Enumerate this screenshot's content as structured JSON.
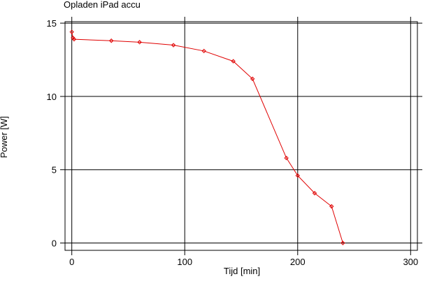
{
  "chart_data": {
    "type": "line",
    "title": "Opladen iPad accu",
    "x_label": "Tijd [min]",
    "y_label": "Power [W]",
    "x": [
      0,
      1,
      2,
      35,
      60,
      90,
      117,
      143,
      160,
      190,
      200,
      215,
      230,
      240
    ],
    "series": [
      {
        "name": "Power",
        "color": "#e00000",
        "values": [
          14.4,
          14.0,
          13.9,
          13.8,
          13.7,
          13.5,
          13.1,
          12.4,
          11.2,
          5.8,
          4.6,
          3.4,
          2.5,
          0
        ]
      }
    ],
    "xlim": [
      -6,
      306
    ],
    "ylim": [
      -0.5,
      15.1
    ],
    "xticks": [
      0,
      100,
      200,
      300
    ],
    "yticks": [
      0,
      5,
      10,
      15
    ],
    "grid": true
  }
}
